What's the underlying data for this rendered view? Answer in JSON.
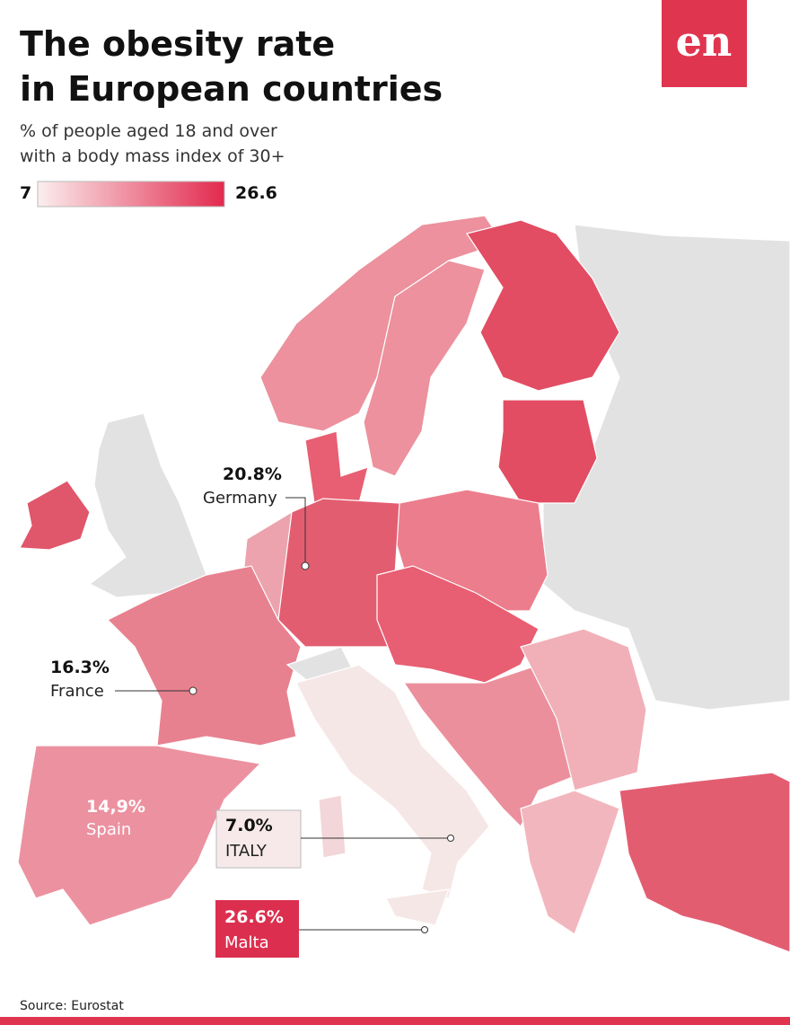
{
  "header": {
    "title_line1": "The obesity rate",
    "title_line2": "in European countries",
    "subtitle_line1": "% of people aged 18 and over",
    "subtitle_line2": "with a body mass index of 30+",
    "logo": "en"
  },
  "legend": {
    "min": 7,
    "max": 26.6
  },
  "callouts": [
    {
      "value": "20.8%",
      "country": "Germany"
    },
    {
      "value": "16.3%",
      "country": "France"
    },
    {
      "value": "14,9%",
      "country": "Spain"
    },
    {
      "value": "7.0%",
      "country": "ITALY"
    },
    {
      "value": "26.6%",
      "country": "Malta"
    }
  ],
  "footer": {
    "source": "Source: Eurostat"
  }
}
